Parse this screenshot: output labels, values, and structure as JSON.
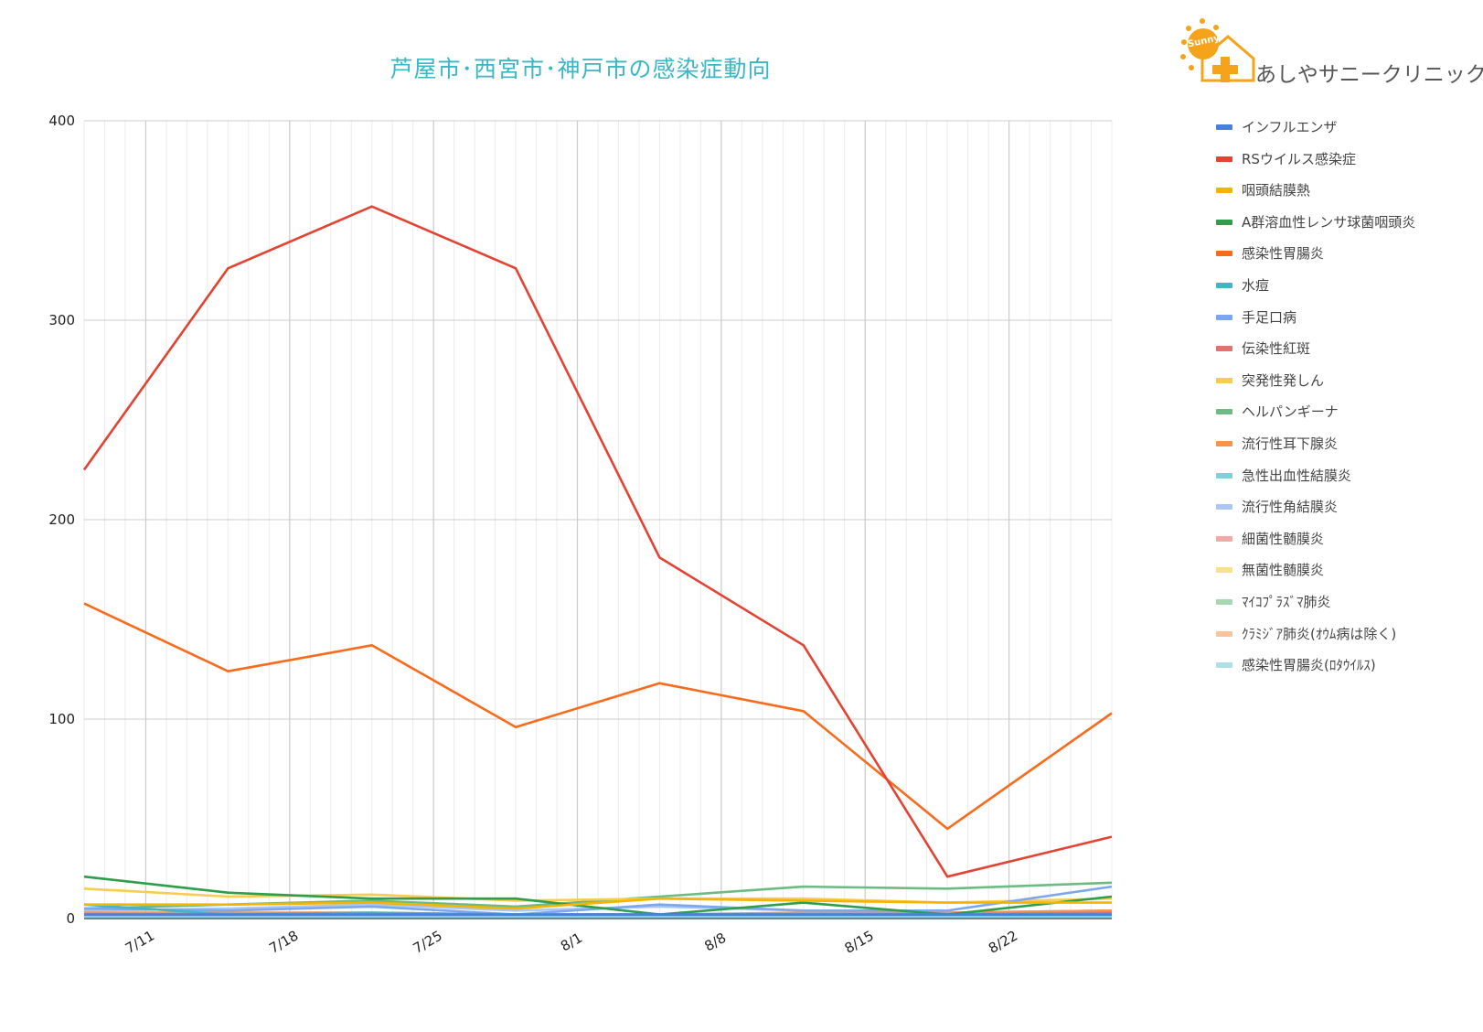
{
  "chart_data": {
    "type": "line",
    "title": "芦屋市･西宮市･神戸市の感染症動向",
    "xlabel": "",
    "ylabel": "",
    "x_tick_labels": [
      "7/11",
      "7/18",
      "7/25",
      "8/1",
      "8/8",
      "8/15",
      "8/22"
    ],
    "x_tick_dates": [
      "07-11",
      "07-18",
      "07-25",
      "08-01",
      "08-08",
      "08-15",
      "08-22"
    ],
    "x_range": [
      "07-08",
      "08-27"
    ],
    "x": [
      "07-08",
      "07-15",
      "07-22",
      "07-29",
      "08-05",
      "08-12",
      "08-19",
      "08-27"
    ],
    "ylim": [
      0,
      400
    ],
    "y_ticks": [
      0,
      100,
      200,
      300,
      400
    ],
    "grid": true,
    "legend_position": "right",
    "series": [
      {
        "name": "インフルエンザ",
        "color": "#4a7fe0",
        "values": [
          2,
          2,
          2,
          2,
          2,
          2,
          2,
          2
        ]
      },
      {
        "name": "RSウイルス感染症",
        "color": "#e24332",
        "values": [
          225,
          326,
          357,
          326,
          181,
          137,
          21,
          41
        ]
      },
      {
        "name": "咽頭結膜熱",
        "color": "#f5b400",
        "values": [
          7,
          7,
          8,
          5,
          10,
          9,
          8,
          8
        ]
      },
      {
        "name": "A群溶血性レンサ球菌咽頭炎",
        "color": "#2e9e4a",
        "values": [
          21,
          13,
          10,
          10,
          2,
          8,
          2,
          11
        ]
      },
      {
        "name": "感染性胃腸炎",
        "color": "#f86b1c",
        "values": [
          158,
          124,
          137,
          96,
          118,
          104,
          45,
          103
        ]
      },
      {
        "name": "水痘",
        "color": "#41b5c4",
        "values": [
          7,
          2,
          3,
          2,
          2,
          2,
          2,
          2
        ]
      },
      {
        "name": "手足口病",
        "color": "#7aa7ee",
        "values": [
          5,
          4,
          6,
          2,
          7,
          4,
          4,
          16
        ]
      },
      {
        "name": "伝染性紅斑",
        "color": "#e0736b",
        "values": [
          2,
          2,
          2,
          2,
          2,
          2,
          2,
          3
        ]
      },
      {
        "name": "突発性発しん",
        "color": "#f8cc50",
        "values": [
          15,
          11,
          12,
          9,
          10,
          10,
          8,
          10
        ]
      },
      {
        "name": "ヘルパンギーナ",
        "color": "#6cbb82",
        "values": [
          5,
          7,
          9,
          6,
          11,
          16,
          15,
          18
        ]
      },
      {
        "name": "流行性耳下腺炎",
        "color": "#f7944b",
        "values": [
          3,
          3,
          3,
          2,
          2,
          3,
          3,
          4
        ]
      },
      {
        "name": "急性出血性結膜炎",
        "color": "#7fd0d8",
        "values": [
          1,
          1,
          1,
          1,
          1,
          1,
          1,
          1
        ]
      },
      {
        "name": "流行性角結膜炎",
        "color": "#a9c6f5",
        "values": [
          4,
          5,
          7,
          4,
          6,
          4,
          3,
          4
        ]
      },
      {
        "name": "細菌性髄膜炎",
        "color": "#f2aaa4",
        "values": [
          1,
          1,
          1,
          1,
          1,
          1,
          1,
          1
        ]
      },
      {
        "name": "無菌性髄膜炎",
        "color": "#f8e18e",
        "values": [
          1,
          1,
          1,
          1,
          1,
          1,
          1,
          1
        ]
      },
      {
        "name": "ﾏｲｺﾌﾟﾗｽﾞﾏ肺炎",
        "color": "#a6d9b2",
        "values": [
          2,
          2,
          2,
          2,
          2,
          2,
          2,
          2
        ]
      },
      {
        "name": "ｸﾗﾐｼﾞｱ肺炎(ｵｳﾑ病は除く)",
        "color": "#fac39b",
        "values": [
          1,
          1,
          1,
          1,
          1,
          1,
          1,
          1
        ]
      },
      {
        "name": "感染性胃腸炎(ﾛﾀｳｲﾙｽ)",
        "color": "#aee0e6",
        "values": [
          1,
          1,
          1,
          1,
          1,
          1,
          1,
          1
        ]
      }
    ]
  },
  "logo": {
    "sun_text": "Sunny",
    "text": "あしやサニークリニック",
    "sun_color": "#f5a31a",
    "house_color": "#f5a31a"
  }
}
